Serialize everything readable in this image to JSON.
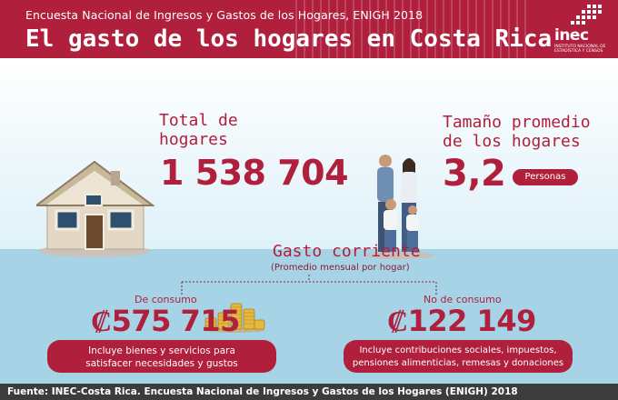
{
  "header": {
    "subtitle": "Encuesta Nacional de  Ingresos y Gastos de los Hogares, ENIGH 2018",
    "title": "El gasto de los hogares en Costa Rica",
    "logo_name": "inec",
    "logo_tagline": "INSTITUTO NACIONAL DE ESTADÍSTICA Y CENSOS"
  },
  "households": {
    "label_line1": "Total de",
    "label_line2": "hogares",
    "value": "1 538 704"
  },
  "household_size": {
    "label_line1": "Tamaño promedio",
    "label_line2": "de los hogares",
    "value": "3,2",
    "unit": "Personas"
  },
  "spending": {
    "title": "Gasto corriente",
    "subtitle": "(Promedio mensual por hogar)",
    "consumption": {
      "label": "De consumo",
      "currency": "₡",
      "value": "575 715",
      "desc_line1": "Incluye bienes y servicios para",
      "desc_line2": "satisfacer necesidades y gustos"
    },
    "non_consumption": {
      "label": "No de consumo",
      "currency": "₡",
      "value": "122 149",
      "desc_line1": "Incluye contribuciones sociales, impuestos,",
      "desc_line2": "pensiones alimenticias, remesas y donaciones"
    }
  },
  "footer": {
    "source": "Fuente: INEC-Costa Rica. Encuesta Nacional de Ingresos y Gastos de los Hogares (ENIGH) 2018"
  },
  "colors": {
    "brand_red": "#b01f3c",
    "sky_blue": "#a7d3e7",
    "footer_gray": "#3c3c3c"
  },
  "icons": [
    "house-icon",
    "family-icon",
    "coins-icon",
    "inec-logo-icon"
  ]
}
